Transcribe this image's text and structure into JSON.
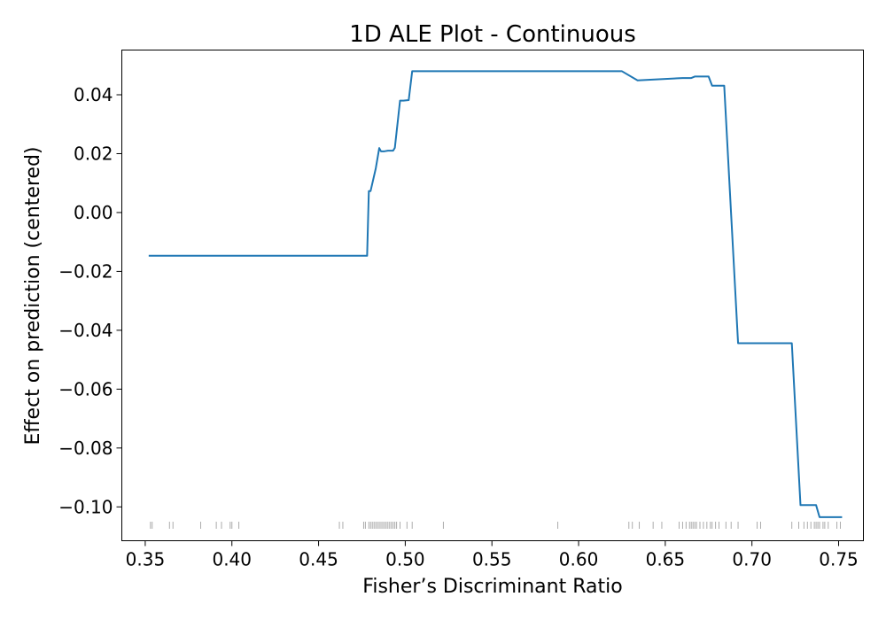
{
  "chart_data": {
    "type": "line",
    "title": "1D ALE Plot - Continuous",
    "xlabel": "Fisher’s Discriminant Ratio",
    "ylabel": "Effect on prediction (centered)",
    "xlim": [
      0.3365,
      0.7643
    ],
    "ylim": [
      -0.1115,
      0.0552
    ],
    "xticks": [
      {
        "value": 0.35,
        "label": "0.35"
      },
      {
        "value": 0.4,
        "label": "0.40"
      },
      {
        "value": 0.45,
        "label": "0.45"
      },
      {
        "value": 0.5,
        "label": "0.50"
      },
      {
        "value": 0.55,
        "label": "0.55"
      },
      {
        "value": 0.6,
        "label": "0.60"
      },
      {
        "value": 0.65,
        "label": "0.65"
      },
      {
        "value": 0.7,
        "label": "0.70"
      },
      {
        "value": 0.75,
        "label": "0.75"
      }
    ],
    "yticks": [
      {
        "value": 0.04,
        "label": "0.04"
      },
      {
        "value": 0.02,
        "label": "0.02"
      },
      {
        "value": 0.0,
        "label": "0.00"
      },
      {
        "value": -0.02,
        "label": "−0.02"
      },
      {
        "value": -0.04,
        "label": "−0.04"
      },
      {
        "value": -0.06,
        "label": "−0.06"
      },
      {
        "value": -0.08,
        "label": "−0.08"
      },
      {
        "value": -0.1,
        "label": "−0.10"
      }
    ],
    "grid": false,
    "line_color": "#1f77b4",
    "rug_color": "#888888",
    "series": [
      {
        "x": [
          0.352,
          0.478,
          0.479,
          0.48,
          0.483,
          0.485,
          0.486,
          0.488,
          0.49,
          0.493,
          0.494,
          0.497,
          0.499,
          0.502,
          0.504,
          0.52,
          0.625,
          0.634,
          0.66,
          0.665,
          0.667,
          0.675,
          0.677,
          0.68,
          0.684,
          0.692,
          0.7,
          0.723,
          0.728,
          0.737,
          0.739,
          0.752
        ],
        "y": [
          -0.0147,
          -0.0147,
          0.0073,
          0.0073,
          0.015,
          0.0219,
          0.0208,
          0.0208,
          0.021,
          0.021,
          0.022,
          0.038,
          0.038,
          0.0382,
          0.048,
          0.048,
          0.048,
          0.0449,
          0.0457,
          0.0457,
          0.0462,
          0.0462,
          0.0431,
          0.0431,
          0.0431,
          -0.0444,
          -0.0444,
          -0.0444,
          -0.0994,
          -0.0994,
          -0.1035,
          -0.1035
        ]
      }
    ],
    "rug_x": [
      0.353,
      0.354,
      0.364,
      0.366,
      0.382,
      0.391,
      0.394,
      0.399,
      0.4,
      0.404,
      0.462,
      0.464,
      0.476,
      0.477,
      0.479,
      0.48,
      0.481,
      0.482,
      0.483,
      0.484,
      0.485,
      0.486,
      0.487,
      0.488,
      0.489,
      0.49,
      0.491,
      0.492,
      0.493,
      0.494,
      0.495,
      0.497,
      0.501,
      0.504,
      0.522,
      0.588,
      0.629,
      0.631,
      0.635,
      0.643,
      0.648,
      0.658,
      0.66,
      0.662,
      0.664,
      0.665,
      0.666,
      0.667,
      0.668,
      0.67,
      0.672,
      0.674,
      0.676,
      0.677,
      0.679,
      0.681,
      0.685,
      0.688,
      0.692,
      0.703,
      0.705,
      0.723,
      0.727,
      0.73,
      0.732,
      0.734,
      0.736,
      0.737,
      0.738,
      0.739,
      0.741,
      0.742,
      0.744,
      0.749,
      0.751
    ]
  }
}
